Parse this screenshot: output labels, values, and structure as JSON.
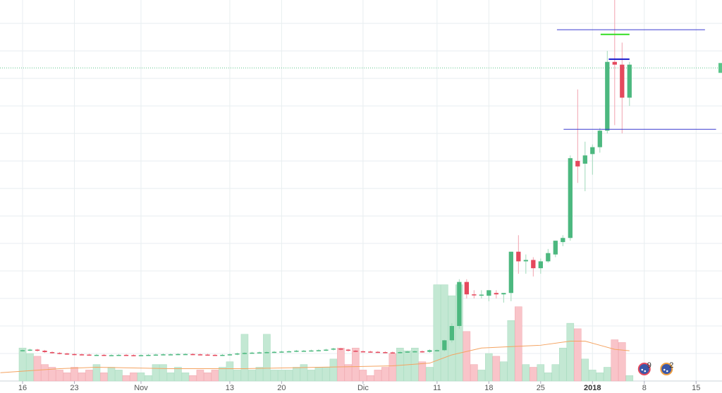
{
  "chart_data": {
    "type": "candlestick",
    "xlim": [
      -3.05,
      94.5
    ],
    "ylim": [
      0,
      13.85
    ],
    "yticks": [
      1,
      2,
      3,
      4,
      5,
      6,
      7,
      8,
      9,
      10,
      11,
      12,
      13
    ],
    "xticks": [
      {
        "value": 0,
        "label": "16"
      },
      {
        "value": 7,
        "label": "23"
      },
      {
        "value": 16,
        "label": "Nov"
      },
      {
        "value": 28,
        "label": "13"
      },
      {
        "value": 35,
        "label": "20"
      },
      {
        "value": 46,
        "label": "Dic"
      },
      {
        "value": 56,
        "label": "11"
      },
      {
        "value": 63,
        "label": "18"
      },
      {
        "value": 70,
        "label": "25"
      },
      {
        "value": 77,
        "label": "2018"
      },
      {
        "value": 84,
        "label": "8"
      },
      {
        "value": 91,
        "label": "15"
      }
    ],
    "grid": true,
    "up_color": "#4cb87f",
    "down_color": "#e5495d",
    "up_wick_color": "#9fd9b9",
    "down_wick_color": "#f2a3af",
    "up_volume_color": "#c3e8d3",
    "down_volume_color": "#f9c4c9",
    "x": [
      0,
      1,
      2,
      3,
      4,
      5,
      6,
      7,
      8,
      9,
      10,
      11,
      12,
      13,
      14,
      15,
      16,
      17,
      18,
      19,
      20,
      21,
      22,
      23,
      24,
      25,
      26,
      27,
      28,
      29,
      30,
      31,
      32,
      33,
      34,
      35,
      36,
      37,
      38,
      39,
      40,
      41,
      42,
      43,
      44,
      45,
      46,
      47,
      48,
      49,
      50,
      51,
      52,
      53,
      54,
      55,
      56,
      57,
      58,
      59,
      60,
      61,
      62,
      63,
      64,
      65,
      66,
      67,
      68,
      69,
      70,
      71,
      72,
      73,
      74,
      75,
      76,
      77,
      78,
      79,
      80,
      81,
      82
    ],
    "open": [
      1.1,
      1.12,
      1.14,
      1.1,
      1.05,
      1.02,
      1.0,
      0.98,
      0.97,
      0.96,
      0.95,
      0.95,
      0.94,
      0.94,
      0.95,
      0.94,
      0.93,
      0.94,
      0.95,
      0.96,
      0.97,
      0.97,
      0.98,
      0.98,
      0.97,
      0.96,
      0.95,
      0.94,
      0.95,
      0.97,
      1.0,
      1.02,
      1.03,
      1.04,
      1.05,
      1.06,
      1.07,
      1.08,
      1.1,
      1.1,
      1.11,
      1.12,
      1.14,
      1.18,
      1.14,
      1.1,
      1.08,
      1.07,
      1.06,
      1.05,
      1.04,
      1.03,
      1.05,
      1.07,
      1.08,
      1.06,
      1.1,
      1.12,
      1.48,
      2.0,
      3.6,
      3.15,
      3.12,
      3.1,
      3.2,
      3.15,
      3.2,
      4.7,
      4.35,
      4.4,
      4.1,
      4.35,
      4.6,
      5.05,
      5.2,
      8.0,
      7.9,
      8.25,
      8.5,
      9.1,
      11.6,
      11.5,
      10.3
    ],
    "high": [
      1.15,
      1.17,
      1.17,
      1.13,
      1.08,
      1.05,
      1.03,
      1.01,
      1.0,
      0.99,
      0.98,
      0.98,
      0.97,
      0.98,
      0.98,
      0.97,
      0.97,
      0.98,
      0.99,
      1.0,
      1.0,
      1.01,
      1.01,
      1.01,
      1.0,
      0.99,
      0.98,
      0.98,
      1.0,
      1.03,
      1.05,
      1.06,
      1.07,
      1.08,
      1.09,
      1.1,
      1.11,
      1.13,
      1.13,
      1.14,
      1.15,
      1.17,
      1.21,
      1.21,
      1.17,
      1.13,
      1.11,
      1.1,
      1.09,
      1.08,
      1.07,
      1.08,
      1.1,
      1.11,
      1.11,
      1.15,
      1.15,
      1.5,
      2.1,
      3.7,
      3.7,
      3.3,
      3.3,
      3.3,
      3.3,
      3.2,
      4.7,
      5.3,
      4.6,
      4.5,
      4.45,
      4.8,
      5.1,
      5.3,
      8.2,
      10.6,
      8.7,
      8.6,
      9.2,
      12.0,
      14.0,
      12.3,
      11.6
    ],
    "low": [
      1.07,
      1.09,
      1.07,
      1.02,
      0.99,
      0.97,
      0.95,
      0.94,
      0.93,
      0.92,
      0.92,
      0.91,
      0.91,
      0.91,
      0.91,
      0.9,
      0.9,
      0.91,
      0.92,
      0.93,
      0.94,
      0.94,
      0.95,
      0.94,
      0.93,
      0.92,
      0.91,
      0.91,
      0.92,
      0.94,
      0.97,
      0.99,
      1.0,
      1.01,
      1.02,
      1.03,
      1.04,
      1.05,
      1.07,
      1.07,
      1.08,
      1.09,
      1.11,
      1.11,
      1.07,
      1.05,
      1.04,
      1.03,
      1.02,
      1.01,
      1.0,
      1.0,
      1.02,
      1.04,
      1.03,
      1.03,
      1.07,
      1.08,
      1.4,
      1.9,
      3.0,
      3.0,
      3.0,
      2.9,
      3.0,
      2.85,
      2.9,
      3.9,
      3.9,
      3.8,
      3.9,
      4.3,
      4.5,
      4.9,
      5.1,
      7.2,
      6.9,
      7.5,
      8.3,
      9.0,
      9.3,
      9.0,
      10.0
    ],
    "close": [
      1.12,
      1.14,
      1.1,
      1.05,
      1.02,
      1.0,
      0.98,
      0.97,
      0.96,
      0.95,
      0.95,
      0.94,
      0.94,
      0.95,
      0.94,
      0.93,
      0.94,
      0.95,
      0.96,
      0.97,
      0.97,
      0.98,
      0.98,
      0.97,
      0.96,
      0.95,
      0.94,
      0.95,
      0.97,
      1.0,
      1.02,
      1.03,
      1.04,
      1.05,
      1.06,
      1.07,
      1.08,
      1.1,
      1.1,
      1.11,
      1.12,
      1.14,
      1.18,
      1.14,
      1.1,
      1.08,
      1.07,
      1.06,
      1.05,
      1.04,
      1.03,
      1.05,
      1.07,
      1.08,
      1.06,
      1.12,
      1.12,
      1.48,
      2.0,
      3.6,
      3.15,
      3.12,
      3.14,
      3.3,
      3.15,
      3.2,
      4.7,
      4.35,
      4.4,
      4.1,
      4.35,
      4.65,
      5.1,
      5.2,
      8.1,
      7.8,
      8.2,
      8.5,
      9.1,
      11.6,
      11.5,
      10.3,
      11.5
    ],
    "volume": [
      1.2,
      1.0,
      0.9,
      0.6,
      0.5,
      0.4,
      0.3,
      0.5,
      0.3,
      0.4,
      0.6,
      0.3,
      0.5,
      0.4,
      0.2,
      0.3,
      0.3,
      0.2,
      0.6,
      0.6,
      0.3,
      0.5,
      0.3,
      0.2,
      0.4,
      0.3,
      0.4,
      0.5,
      0.7,
      0.4,
      1.7,
      0.4,
      0.5,
      1.7,
      0.4,
      0.4,
      0.4,
      0.5,
      0.6,
      0.4,
      0.5,
      0.5,
      0.8,
      1.2,
      0.6,
      1.2,
      0.4,
      0.2,
      0.4,
      0.5,
      1.0,
      1.2,
      1.1,
      1.2,
      0.7,
      0.5,
      3.5,
      3.5,
      3.1,
      3.5,
      1.8,
      0.6,
      0.4,
      1.0,
      0.9,
      0.7,
      2.2,
      2.7,
      0.6,
      0.5,
      0.6,
      0.3,
      0.6,
      1.2,
      2.1,
      1.9,
      0.8,
      0.4,
      0.3,
      0.5,
      1.5,
      1.4,
      0.2
    ],
    "volume_ma": {
      "color": "#f4a361",
      "x": [
        -3,
        5,
        10,
        20,
        30,
        40,
        50,
        55,
        58,
        62,
        66,
        70,
        74,
        76,
        78,
        80,
        82
      ],
      "values": [
        0.3,
        0.45,
        0.5,
        0.45,
        0.45,
        0.5,
        0.55,
        0.65,
        0.95,
        1.2,
        1.25,
        1.3,
        1.45,
        1.45,
        1.3,
        1.15,
        1.1
      ]
    },
    "hlines": [
      {
        "value": 12.77,
        "color": "#3b3bd0",
        "x": [
          72.2,
          92.2
        ]
      },
      {
        "value": 12.6,
        "color": "#33dd22",
        "x": [
          78.1,
          82
        ]
      },
      {
        "value": 11.7,
        "color": "#1a1acc",
        "x": [
          79.2,
          82
        ]
      },
      {
        "value": 9.15,
        "color": "#3b3bd0",
        "x": [
          73.1,
          93.7
        ]
      }
    ],
    "price_line": {
      "value": 11.38,
      "color": "#5cc58a"
    },
    "events": [
      {
        "x": 84,
        "label": "9"
      },
      {
        "x": 87,
        "label": "2"
      }
    ]
  }
}
